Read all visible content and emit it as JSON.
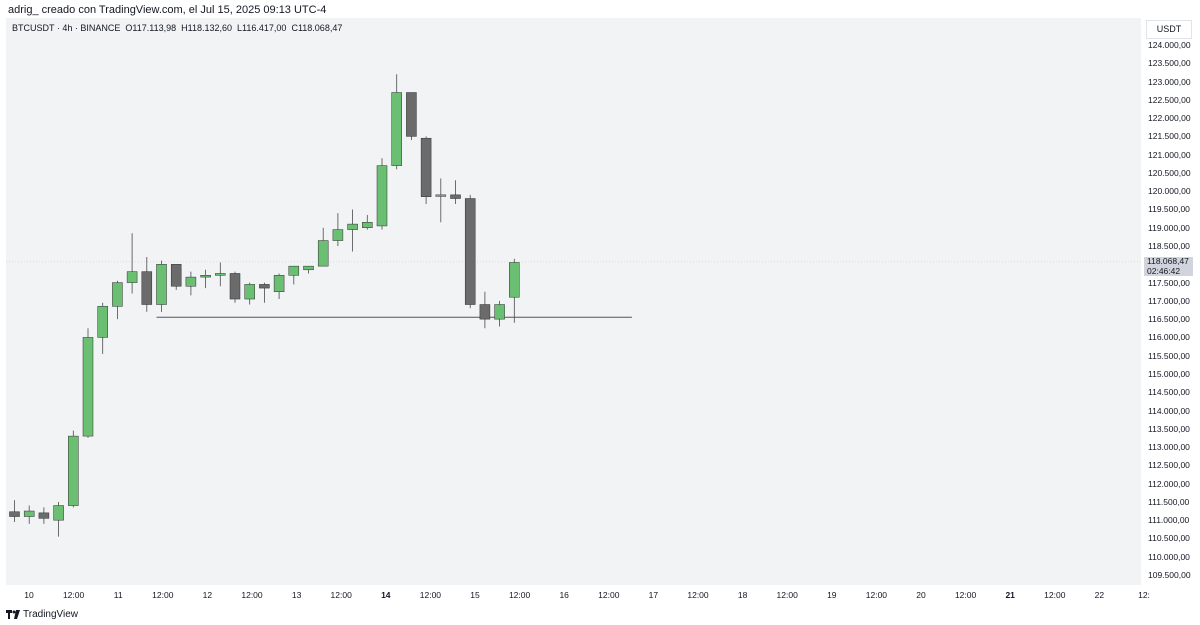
{
  "header": {
    "caption": "adrig_ creado con TradingView.com, el Jul 15, 2025 09:13 UTC-4"
  },
  "legend": {
    "symbol": "BTCUSDT · 4h · BINANCE",
    "open_label": "O",
    "open": "117.113,98",
    "high_label": "H",
    "high": "118.132,60",
    "low_label": "L",
    "low": "116.417,00",
    "close_label": "C",
    "close": "118.068,47"
  },
  "price_axis": {
    "currency": "USDT",
    "labels": [
      "124.000,00",
      "123.500,00",
      "123.000,00",
      "122.500,00",
      "122.000,00",
      "121.500,00",
      "121.000,00",
      "120.500,00",
      "120.000,00",
      "119.500,00",
      "119.000,00",
      "118.500,00",
      "117.500,00",
      "117.000,00",
      "116.500,00",
      "116.000,00",
      "115.500,00",
      "115.000,00",
      "114.500,00",
      "114.000,00",
      "113.500,00",
      "113.000,00",
      "112.500,00",
      "112.000,00",
      "111.500,00",
      "111.000,00",
      "110.500,00",
      "110.000,00",
      "109.500,00"
    ],
    "last_price": "118.068,47",
    "countdown": "02:46:42"
  },
  "time_axis": {
    "labels": [
      {
        "text": "10",
        "bold": false
      },
      {
        "text": "12:00",
        "bold": false
      },
      {
        "text": "11",
        "bold": false
      },
      {
        "text": "12:00",
        "bold": false
      },
      {
        "text": "12",
        "bold": false
      },
      {
        "text": "12:00",
        "bold": false
      },
      {
        "text": "13",
        "bold": false
      },
      {
        "text": "12:00",
        "bold": false
      },
      {
        "text": "14",
        "bold": true
      },
      {
        "text": "12:00",
        "bold": false
      },
      {
        "text": "15",
        "bold": false
      },
      {
        "text": "12:00",
        "bold": false
      },
      {
        "text": "16",
        "bold": false
      },
      {
        "text": "12:00",
        "bold": false
      },
      {
        "text": "17",
        "bold": false
      },
      {
        "text": "12:00",
        "bold": false
      },
      {
        "text": "18",
        "bold": false
      },
      {
        "text": "12:00",
        "bold": false
      },
      {
        "text": "19",
        "bold": false
      },
      {
        "text": "12:00",
        "bold": false
      },
      {
        "text": "20",
        "bold": false
      },
      {
        "text": "12:00",
        "bold": false
      },
      {
        "text": "21",
        "bold": true
      },
      {
        "text": "12:00",
        "bold": false
      },
      {
        "text": "22",
        "bold": false
      },
      {
        "text": "12:",
        "bold": false
      }
    ]
  },
  "brand": {
    "name": "TradingView"
  },
  "colors": {
    "up": "#6bbf72",
    "down": "#6b6b6b",
    "wick": "#4a4a4a",
    "support": "#555555"
  },
  "chart_data": {
    "type": "candlestick",
    "symbol": "BTCUSDT",
    "timeframe": "4h",
    "exchange": "BINANCE",
    "ylim": [
      109300,
      124200
    ],
    "candles": [
      {
        "o": 111230,
        "h": 111550,
        "l": 110950,
        "c": 111100
      },
      {
        "o": 111100,
        "h": 111400,
        "l": 110900,
        "c": 111250
      },
      {
        "o": 111200,
        "h": 111350,
        "l": 110900,
        "c": 111050
      },
      {
        "o": 111000,
        "h": 111500,
        "l": 110550,
        "c": 111400
      },
      {
        "o": 111400,
        "h": 113450,
        "l": 111350,
        "c": 113300
      },
      {
        "o": 113300,
        "h": 116250,
        "l": 113250,
        "c": 116000
      },
      {
        "o": 116000,
        "h": 116950,
        "l": 115550,
        "c": 116850
      },
      {
        "o": 116850,
        "h": 117550,
        "l": 116500,
        "c": 117500
      },
      {
        "o": 117500,
        "h": 118850,
        "l": 117200,
        "c": 117800
      },
      {
        "o": 117800,
        "h": 118200,
        "l": 116700,
        "c": 116900
      },
      {
        "o": 116900,
        "h": 118100,
        "l": 116700,
        "c": 118000
      },
      {
        "o": 118000,
        "h": 118000,
        "l": 117300,
        "c": 117400
      },
      {
        "o": 117400,
        "h": 117800,
        "l": 117150,
        "c": 117650
      },
      {
        "o": 117650,
        "h": 117850,
        "l": 117350,
        "c": 117700
      },
      {
        "o": 117700,
        "h": 118050,
        "l": 117400,
        "c": 117750
      },
      {
        "o": 117750,
        "h": 117800,
        "l": 116950,
        "c": 117050
      },
      {
        "o": 117050,
        "h": 117500,
        "l": 116900,
        "c": 117450
      },
      {
        "o": 117450,
        "h": 117500,
        "l": 116950,
        "c": 117350
      },
      {
        "o": 117250,
        "h": 117750,
        "l": 117050,
        "c": 117700
      },
      {
        "o": 117700,
        "h": 117950,
        "l": 117450,
        "c": 117950
      },
      {
        "o": 117850,
        "h": 117950,
        "l": 117750,
        "c": 117950
      },
      {
        "o": 117950,
        "h": 119000,
        "l": 117950,
        "c": 118650
      },
      {
        "o": 118650,
        "h": 119400,
        "l": 118500,
        "c": 118950
      },
      {
        "o": 118950,
        "h": 119500,
        "l": 118350,
        "c": 119100
      },
      {
        "o": 119000,
        "h": 119350,
        "l": 118950,
        "c": 119150
      },
      {
        "o": 119050,
        "h": 120900,
        "l": 118950,
        "c": 120700
      },
      {
        "o": 120700,
        "h": 123200,
        "l": 120600,
        "c": 122700
      },
      {
        "o": 122700,
        "h": 122700,
        "l": 121400,
        "c": 121500
      },
      {
        "o": 121450,
        "h": 121500,
        "l": 119650,
        "c": 119850
      },
      {
        "o": 119900,
        "h": 120350,
        "l": 119150,
        "c": 119900
      },
      {
        "o": 119900,
        "h": 120300,
        "l": 119650,
        "c": 119800
      },
      {
        "o": 119800,
        "h": 119900,
        "l": 116800,
        "c": 116900
      },
      {
        "o": 116900,
        "h": 117250,
        "l": 116250,
        "c": 116500
      },
      {
        "o": 116500,
        "h": 117000,
        "l": 116300,
        "c": 116900
      },
      {
        "o": 117100,
        "h": 118150,
        "l": 116400,
        "c": 118050
      }
    ],
    "support_line": {
      "price": 116550,
      "from_candle": 10,
      "to_candle": 42
    },
    "last_price": 118068.47
  }
}
